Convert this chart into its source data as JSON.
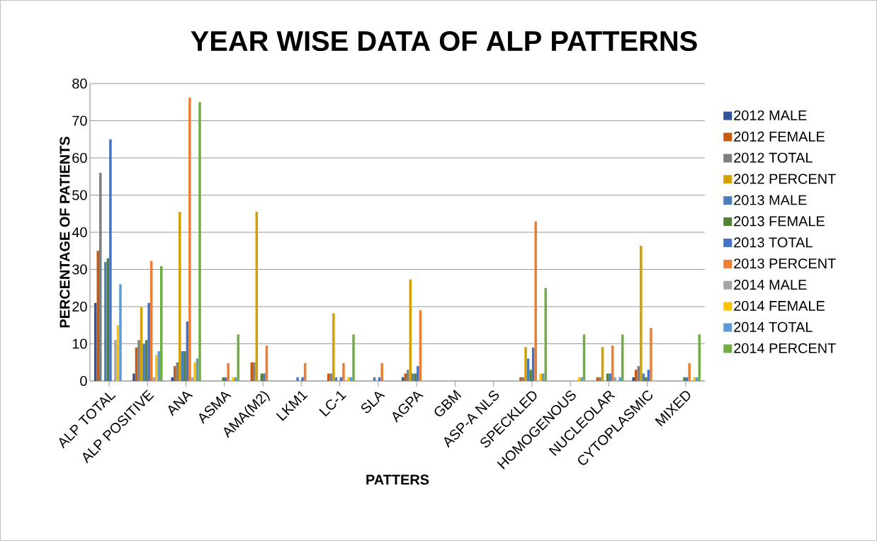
{
  "chart_data": {
    "type": "bar",
    "title": "YEAR WISE DATA OF ALP PATTERNS",
    "xlabel": "PATTERS",
    "ylabel": "PERCENTAGE OF PATIENTS",
    "categories": [
      "ALP TOTAL",
      "ALP POSITIVE",
      "ANA",
      "ASMA",
      "AMA(M2)",
      "LKM1",
      "LC-1",
      "SLA",
      "AGPA",
      "GBM",
      "ASP-A NLS",
      "SPECKLED",
      "HOMOGENOUS",
      "NUCLEOLAR",
      "CYTOPLASMIC",
      "MIXED"
    ],
    "series": [
      {
        "name": "2012 MALE",
        "color": "#2f5597",
        "values": [
          21,
          2,
          1,
          0,
          0,
          0,
          0,
          0,
          1,
          0,
          0,
          0,
          0,
          0,
          1,
          0
        ]
      },
      {
        "name": "2012 FEMALE",
        "color": "#c55a11",
        "values": [
          35,
          9,
          4,
          0,
          5,
          0,
          2,
          0,
          2,
          0,
          0,
          1,
          0,
          1,
          3,
          0
        ]
      },
      {
        "name": "2012 TOTAL",
        "color": "#7f7f7f",
        "values": [
          56,
          11,
          5,
          0,
          5,
          0,
          2,
          0,
          3,
          0,
          0,
          1,
          0,
          1,
          4,
          0
        ]
      },
      {
        "name": "2012 PERCENT",
        "color": "#d4a000",
        "values": [
          0,
          19.8,
          45.5,
          0,
          45.5,
          0,
          18.2,
          0,
          27.3,
          0,
          0,
          9.1,
          0,
          9.1,
          36.4,
          0
        ]
      },
      {
        "name": "2013 MALE",
        "color": "#4a7ebb",
        "values": [
          32,
          10,
          8,
          0,
          0,
          1,
          1,
          1,
          2,
          0,
          0,
          6,
          0,
          0,
          2,
          0
        ]
      },
      {
        "name": "2013 FEMALE",
        "color": "#548235",
        "values": [
          33,
          11,
          8,
          1,
          2,
          0,
          0,
          0,
          2,
          0,
          0,
          3,
          0,
          2,
          1,
          1
        ]
      },
      {
        "name": "2013 TOTAL",
        "color": "#4472c4",
        "values": [
          65,
          21,
          16,
          1,
          2,
          1,
          1,
          1,
          4,
          0,
          0,
          9,
          0,
          2,
          3,
          1
        ]
      },
      {
        "name": "2013 PERCENT",
        "color": "#ed7d31",
        "values": [
          0,
          32.3,
          76.2,
          4.8,
          9.5,
          4.8,
          4.8,
          4.8,
          19,
          0,
          0,
          42.9,
          0,
          9.5,
          14.3,
          4.8
        ]
      },
      {
        "name": "2014 MALE",
        "color": "#a5a5a5",
        "values": [
          11,
          1,
          1,
          0,
          0,
          0,
          0,
          0,
          0,
          0,
          0,
          0,
          0,
          1,
          0,
          0
        ]
      },
      {
        "name": "2014 FEMALE",
        "color": "#ffc000",
        "values": [
          15,
          7,
          5,
          1,
          0,
          0,
          1,
          0,
          0,
          0,
          0,
          2,
          1,
          0,
          0,
          1
        ]
      },
      {
        "name": "2014 TOTAL",
        "color": "#5b9bd5",
        "values": [
          26,
          8,
          6,
          1,
          0,
          0,
          1,
          0,
          0,
          0,
          0,
          2,
          1,
          1,
          0,
          1
        ]
      },
      {
        "name": "2014 PERCENT",
        "color": "#70ad47",
        "values": [
          0,
          30.9,
          75,
          12.5,
          0,
          0,
          12.5,
          0,
          0,
          0,
          0,
          25,
          12.5,
          12.5,
          0,
          12.5
        ]
      }
    ],
    "ylim": [
      0,
      80
    ],
    "yticks": [
      0,
      10,
      20,
      30,
      40,
      50,
      60,
      70,
      80
    ],
    "grid": "y",
    "legend": "right"
  }
}
